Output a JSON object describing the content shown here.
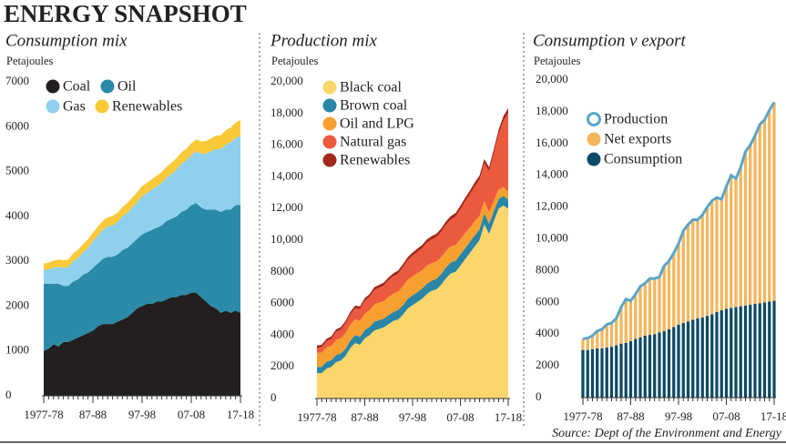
{
  "title": "ENERGY SNAPSHOT",
  "source": "Source: Dept of the Environment and Energy",
  "chart_data": [
    {
      "type": "area",
      "stacked": true,
      "title": "Consumption mix",
      "ylabel": "Petajoules",
      "categories": [
        "1977-78",
        null,
        null,
        null,
        null,
        null,
        null,
        null,
        null,
        null,
        "87-88",
        null,
        null,
        null,
        null,
        null,
        null,
        null,
        null,
        null,
        "97-98",
        null,
        null,
        null,
        null,
        null,
        null,
        null,
        null,
        null,
        "07-08",
        null,
        null,
        null,
        null,
        null,
        null,
        null,
        null,
        null,
        "17-18"
      ],
      "ylim": [
        0,
        7000
      ],
      "yticks": [
        0,
        1000,
        2000,
        3000,
        4000,
        5000,
        6000,
        7000
      ],
      "series": [
        {
          "name": "Coal",
          "color": "#231f20",
          "values": [
            1000,
            1050,
            1150,
            1100,
            1200,
            1200,
            1250,
            1300,
            1350,
            1400,
            1450,
            1550,
            1600,
            1600,
            1600,
            1650,
            1700,
            1750,
            1850,
            1950,
            2000,
            2050,
            2050,
            2100,
            2100,
            2150,
            2200,
            2200,
            2250,
            2250,
            2300,
            2300,
            2200,
            2100,
            2000,
            1950,
            1850,
            1900,
            1850,
            1900,
            1850
          ]
        },
        {
          "name": "Oil",
          "color": "#2a8aa8",
          "values": [
            1500,
            1450,
            1350,
            1400,
            1250,
            1250,
            1300,
            1300,
            1350,
            1350,
            1400,
            1400,
            1450,
            1500,
            1500,
            1500,
            1550,
            1550,
            1550,
            1550,
            1600,
            1600,
            1650,
            1650,
            1700,
            1750,
            1750,
            1800,
            1850,
            1900,
            1950,
            2000,
            2000,
            2050,
            2150,
            2200,
            2250,
            2250,
            2300,
            2350,
            2400
          ]
        },
        {
          "name": "Gas",
          "color": "#8fd0ef",
          "values": [
            300,
            320,
            350,
            380,
            400,
            420,
            450,
            480,
            500,
            550,
            600,
            620,
            650,
            680,
            700,
            720,
            750,
            780,
            800,
            820,
            850,
            870,
            900,
            920,
            950,
            970,
            1000,
            1050,
            1080,
            1100,
            1120,
            1150,
            1200,
            1250,
            1300,
            1350,
            1400,
            1450,
            1500,
            1500,
            1550
          ]
        },
        {
          "name": "Renewables",
          "color": "#f9c93a",
          "values": [
            150,
            150,
            160,
            160,
            170,
            170,
            180,
            180,
            180,
            190,
            190,
            200,
            200,
            200,
            210,
            210,
            210,
            220,
            220,
            220,
            230,
            230,
            230,
            240,
            240,
            240,
            250,
            250,
            250,
            260,
            260,
            270,
            270,
            280,
            290,
            300,
            310,
            320,
            330,
            340,
            350
          ]
        }
      ]
    },
    {
      "type": "area",
      "stacked": true,
      "title": "Production mix",
      "ylabel": "Petajoules",
      "categories": [
        "1977-78",
        null,
        null,
        null,
        null,
        null,
        null,
        null,
        null,
        null,
        "87-88",
        null,
        null,
        null,
        null,
        null,
        null,
        null,
        null,
        null,
        "97-98",
        null,
        null,
        null,
        null,
        null,
        null,
        null,
        null,
        null,
        "07-08",
        null,
        null,
        null,
        null,
        null,
        null,
        null,
        null,
        null,
        "17-18"
      ],
      "ylim": [
        0,
        20000
      ],
      "yticks": [
        0,
        2000,
        4000,
        6000,
        8000,
        {
          "value": 10000,
          "label": "10,000"
        },
        {
          "value": 12000,
          "label": "12,000"
        },
        {
          "value": 14000,
          "label": "14,000"
        },
        {
          "value": 16000,
          "label": "16,000"
        },
        {
          "value": 18000,
          "label": "18,000"
        },
        {
          "value": 20000,
          "label": "20,000"
        }
      ],
      "series": [
        {
          "name": "Black coal",
          "color": "#fbd66b",
          "values": [
            1600,
            1600,
            1900,
            2000,
            2300,
            2400,
            2700,
            3200,
            3500,
            3400,
            3800,
            4000,
            4300,
            4400,
            4500,
            4700,
            4900,
            5000,
            5300,
            5700,
            5900,
            6100,
            6300,
            6600,
            6800,
            6900,
            7200,
            7600,
            7900,
            8000,
            8400,
            8800,
            9200,
            9600,
            10000,
            11000,
            10400,
            11200,
            12000,
            12200,
            12000
          ]
        },
        {
          "name": "Brown coal",
          "color": "#2a86a6",
          "values": [
            400,
            400,
            420,
            420,
            450,
            450,
            450,
            470,
            500,
            500,
            520,
            520,
            550,
            550,
            550,
            570,
            570,
            600,
            600,
            600,
            620,
            620,
            650,
            650,
            650,
            650,
            680,
            680,
            700,
            700,
            700,
            700,
            700,
            700,
            680,
            680,
            650,
            650,
            600,
            600,
            550
          ]
        },
        {
          "name": "Oil and LPG",
          "color": "#f7a030",
          "values": [
            900,
            900,
            900,
            900,
            950,
            950,
            1000,
            1000,
            1000,
            1000,
            1050,
            1050,
            1100,
            1100,
            1100,
            1150,
            1150,
            1150,
            1200,
            1200,
            1200,
            1200,
            1150,
            1150,
            1100,
            1100,
            1050,
            1050,
            1000,
            1000,
            950,
            950,
            900,
            900,
            850,
            800,
            700,
            650,
            600,
            550,
            500
          ]
        },
        {
          "name": "Natural gas",
          "color": "#ec5a3e",
          "values": [
            300,
            350,
            400,
            450,
            500,
            550,
            600,
            650,
            700,
            750,
            800,
            850,
            900,
            950,
            1000,
            1050,
            1100,
            1150,
            1200,
            1250,
            1300,
            1350,
            1400,
            1450,
            1500,
            1550,
            1600,
            1650,
            1700,
            1800,
            1900,
            2000,
            2100,
            2200,
            2300,
            2400,
            2600,
            3000,
            3500,
            4200,
            5000
          ]
        },
        {
          "name": "Renewables",
          "color": "#a0281c",
          "values": [
            150,
            150,
            150,
            150,
            160,
            160,
            160,
            160,
            170,
            170,
            170,
            170,
            180,
            180,
            180,
            180,
            190,
            190,
            190,
            190,
            200,
            200,
            200,
            200,
            210,
            210,
            210,
            210,
            220,
            220,
            230,
            230,
            240,
            240,
            250,
            250,
            260,
            270,
            280,
            290,
            300
          ]
        }
      ]
    },
    {
      "type": "bar",
      "stacked": true,
      "title": "Consumption v export",
      "ylabel": "Petajoules",
      "categories": [
        "1977-78",
        null,
        null,
        null,
        null,
        null,
        null,
        null,
        null,
        null,
        "87-88",
        null,
        null,
        null,
        null,
        null,
        null,
        null,
        null,
        null,
        "97-98",
        null,
        null,
        null,
        null,
        null,
        null,
        null,
        null,
        null,
        "07-08",
        null,
        null,
        null,
        null,
        null,
        null,
        null,
        null,
        null,
        "17-18"
      ],
      "ylim": [
        0,
        20000
      ],
      "yticks": [
        0,
        2000,
        4000,
        6000,
        8000,
        {
          "value": 10000,
          "label": "10,000"
        },
        {
          "value": 12000,
          "label": "12,000"
        },
        {
          "value": 14000,
          "label": "14,000"
        },
        {
          "value": 16000,
          "label": "16,000"
        },
        {
          "value": 18000,
          "label": "18,000"
        },
        {
          "value": 20000,
          "label": "20,000"
        }
      ],
      "series": [
        {
          "name": "Production",
          "type": "line",
          "color": "#5aa5c8",
          "values": [
            3700,
            3750,
            3900,
            4200,
            4300,
            4600,
            4700,
            5000,
            5700,
            6200,
            6100,
            6500,
            7000,
            7200,
            7500,
            7500,
            7600,
            8300,
            8600,
            9100,
            9700,
            10500,
            10900,
            11200,
            11200,
            11500,
            12000,
            12400,
            12600,
            12500,
            13300,
            14000,
            13800,
            14500,
            15500,
            15900,
            16500,
            17200,
            17500,
            18100,
            18600
          ]
        },
        {
          "name": "Net exports",
          "type": "bar",
          "color": "#f6b55a",
          "values": [
            700,
            750,
            850,
            1100,
            1200,
            1450,
            1500,
            1700,
            2300,
            2750,
            2550,
            2800,
            3200,
            3300,
            3550,
            3500,
            3500,
            4100,
            4300,
            4650,
            5100,
            5800,
            6100,
            6300,
            6200,
            6450,
            6850,
            7150,
            7200,
            7000,
            7700,
            8350,
            8100,
            8750,
            9700,
            10050,
            10600,
            11250,
            11500,
            12050,
            12500
          ]
        },
        {
          "name": "Consumption",
          "type": "bar",
          "color": "#0d4a66",
          "values": [
            3000,
            3000,
            3050,
            3100,
            3100,
            3150,
            3200,
            3300,
            3400,
            3450,
            3550,
            3700,
            3800,
            3900,
            3950,
            4000,
            4100,
            4200,
            4300,
            4450,
            4600,
            4700,
            4800,
            4900,
            5000,
            5050,
            5150,
            5250,
            5400,
            5500,
            5600,
            5650,
            5700,
            5750,
            5800,
            5850,
            5900,
            5950,
            6000,
            6050,
            6100
          ]
        }
      ]
    }
  ]
}
